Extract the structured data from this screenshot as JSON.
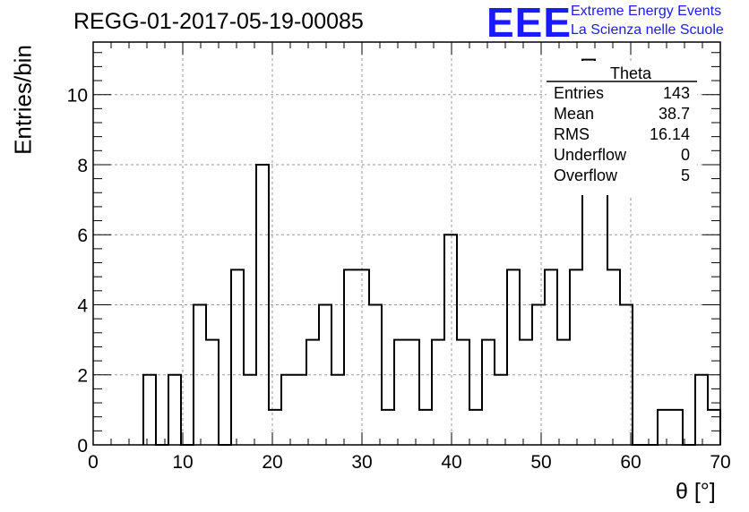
{
  "title": "REGG-01-2017-05-19-00085",
  "logo": {
    "mark": "EEE",
    "line1": "Extreme Energy Events",
    "line2": "La Scienza nelle Scuole"
  },
  "chart_data": {
    "type": "histogram",
    "xlabel": "θ [°]",
    "ylabel": "Entries/bin",
    "xlim": [
      0,
      70
    ],
    "ylim": [
      0,
      11.5
    ],
    "bin_width": 1.4,
    "bin_edges_start": 0,
    "x_ticks": [
      0,
      10,
      20,
      30,
      40,
      50,
      60,
      70
    ],
    "y_ticks": [
      0,
      2,
      4,
      6,
      8,
      10
    ],
    "grid": true,
    "values": [
      0,
      0,
      0,
      0,
      2,
      0,
      2,
      0,
      4,
      3,
      0,
      5,
      2,
      8,
      1,
      2,
      2,
      3,
      4,
      2,
      5,
      5,
      4,
      1,
      3,
      3,
      1,
      3,
      6,
      3,
      1,
      3,
      2,
      5,
      3,
      4,
      5,
      3,
      5,
      11,
      8,
      5,
      4,
      0,
      0,
      1,
      1,
      0,
      2,
      1
    ],
    "series": [
      {
        "name": "Theta"
      }
    ],
    "stats": {
      "name": "Theta",
      "rows": [
        {
          "label": "Entries",
          "value": "143"
        },
        {
          "label": "Mean",
          "value": "38.7"
        },
        {
          "label": "RMS",
          "value": "16.14"
        },
        {
          "label": "Underflow",
          "value": "0"
        },
        {
          "label": "Overflow",
          "value": "5"
        }
      ]
    },
    "colors": {
      "line": "#000000",
      "grid": "#999999",
      "logo": "#1a1aff"
    }
  }
}
